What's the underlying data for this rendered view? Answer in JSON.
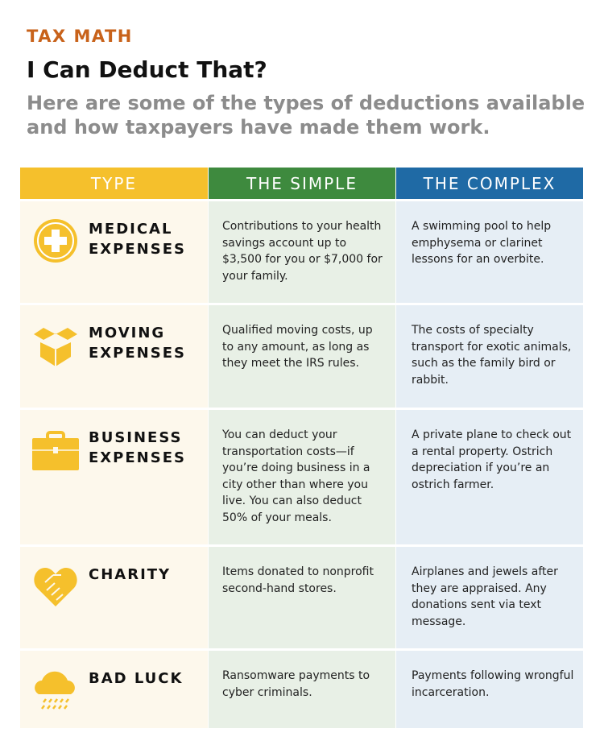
{
  "header": {
    "kicker": "TAX MATH",
    "title": "I Can Deduct That?",
    "subtitle": "Here are some of the types of deductions available and how taxpayers have made them work."
  },
  "colors": {
    "type": "#f5c02c",
    "simple": "#3e8a3e",
    "complex": "#1f6aa5",
    "kicker": "#c8621a"
  },
  "columns": [
    "TYPE",
    "THE SIMPLE",
    "THE COMPLEX"
  ],
  "rows": [
    {
      "icon": "medical-cross-icon",
      "type": "MEDICAL EXPENSES",
      "simple": "Contributions to your health savings account up to $3,500 for you or $7,000 for your family.",
      "complex": "A swimming pool to help emphysema or clarinet lessons for an overbite."
    },
    {
      "icon": "moving-box-icon",
      "type": "MOVING EXPENSES",
      "simple": "Qualified moving costs, up to any amount, as long as they meet the IRS rules.",
      "complex": "The costs of specialty transport for exotic animals, such as the family bird or rabbit."
    },
    {
      "icon": "briefcase-icon",
      "type": "BUSINESS EXPENSES",
      "simple": "You can deduct your transportation costs—if you’re doing business in a city other than where you live. You can also deduct 50% of your meals.",
      "complex": "A private plane to check out a rental property. Ostrich depreciation if you’re an ostrich farmer."
    },
    {
      "icon": "heart-handshake-icon",
      "type": "CHARITY",
      "simple": "Items donated to nonprofit second-hand stores.",
      "complex": "Airplanes and jewels after they are appraised. Any donations sent via text message."
    },
    {
      "icon": "rain-cloud-icon",
      "type": "BAD LUCK",
      "simple": "Ransomware payments to cyber criminals.",
      "complex": "Payments following wrongful incarceration."
    }
  ]
}
